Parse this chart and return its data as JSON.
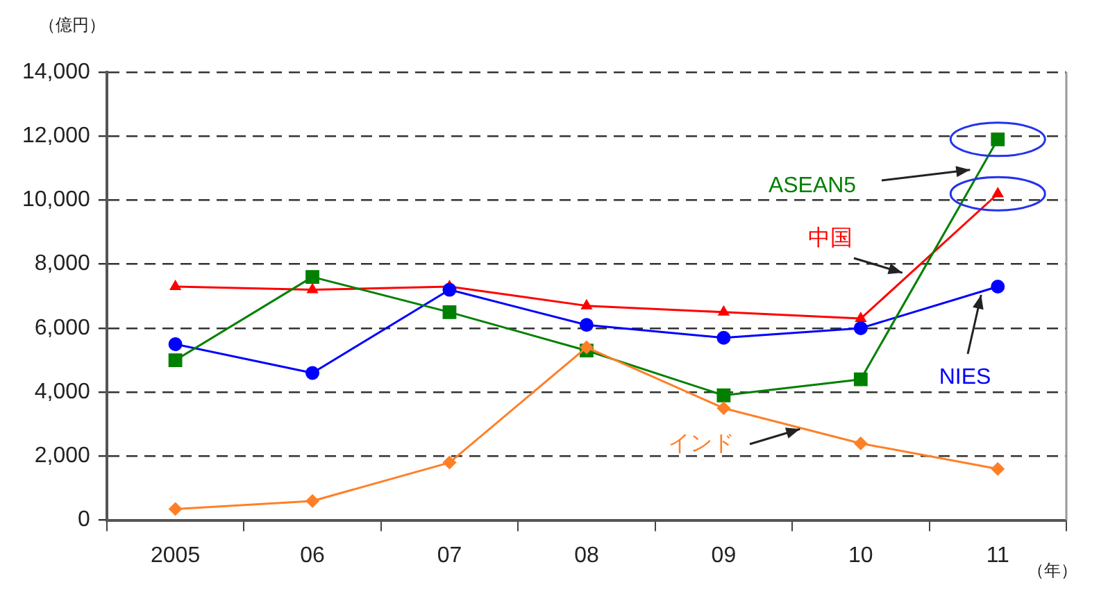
{
  "chart_data": {
    "type": "line",
    "ylabel": "（億円）",
    "xlabel": "（年）",
    "categories": [
      "2005",
      "06",
      "07",
      "08",
      "09",
      "10",
      "11"
    ],
    "ylim": [
      0,
      14000
    ],
    "yticks": [
      {
        "value": 0,
        "label": "0"
      },
      {
        "value": 2000,
        "label": "2,000"
      },
      {
        "value": 4000,
        "label": "4,000"
      },
      {
        "value": 6000,
        "label": "6,000"
      },
      {
        "value": 8000,
        "label": "8,000"
      },
      {
        "value": 10000,
        "label": "10,000"
      },
      {
        "value": 12000,
        "label": "12,000"
      },
      {
        "value": 14000,
        "label": "14,000"
      }
    ],
    "grid": "y",
    "legend": false,
    "line_style": "solid",
    "series": [
      {
        "name": "中国",
        "color": "#ff0000",
        "marker": "triangle",
        "values": [
          7300,
          7200,
          7300,
          6700,
          6500,
          6300,
          10200
        ]
      },
      {
        "name": "NIES",
        "color": "#0000ff",
        "marker": "circle",
        "values": [
          5500,
          4600,
          7200,
          6100,
          5700,
          6000,
          7300
        ]
      },
      {
        "name": "ASEAN5",
        "color": "#008000",
        "marker": "square",
        "values": [
          5000,
          7600,
          6500,
          5300,
          3900,
          4400,
          11900
        ]
      },
      {
        "name": "インド",
        "color": "#ff7f27",
        "marker": "diamond",
        "values": [
          350,
          600,
          1800,
          5400,
          3500,
          2400,
          1600
        ]
      }
    ]
  }
}
